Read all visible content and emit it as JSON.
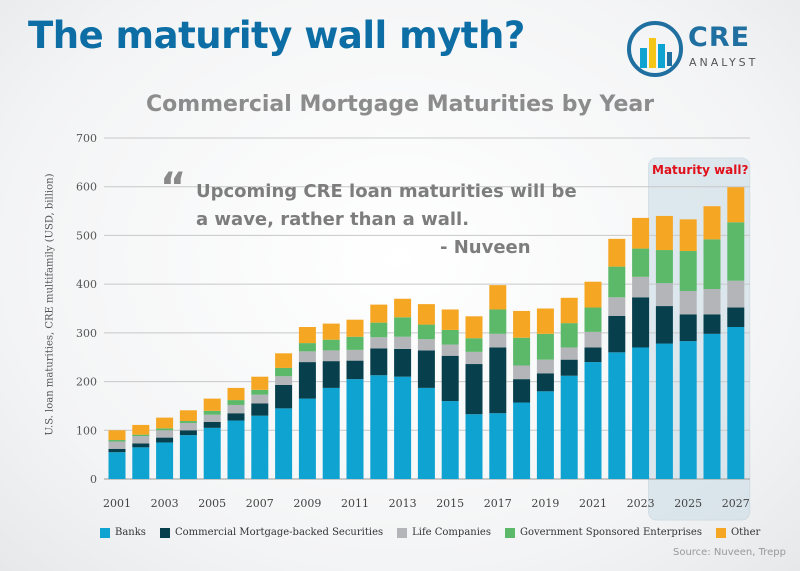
{
  "headline": "The maturity wall myth?",
  "logo": {
    "name": "CRE",
    "sub": "ANALYST"
  },
  "source": "Source: Nuveen, Trepp",
  "quote": {
    "mark": "“",
    "line1": "Upcoming CRE loan maturities will be",
    "line2": "a wave, rather than a wall.",
    "attribution": "- Nuveen"
  },
  "chart_data": {
    "type": "bar",
    "stacked": true,
    "title": "Commercial Mortgage Maturities by Year",
    "ylabel": "U.S. loan maturities, CRE multifamily (USD, billion)",
    "xlabel": "",
    "ylim": [
      0,
      700
    ],
    "yticks": [
      0,
      100,
      200,
      300,
      400,
      500,
      600,
      700
    ],
    "categories": [
      2001,
      2002,
      2003,
      2004,
      2005,
      2006,
      2007,
      2008,
      2009,
      2010,
      2011,
      2012,
      2013,
      2014,
      2015,
      2016,
      2017,
      2018,
      2019,
      2020,
      2021,
      2022,
      2023,
      2024,
      2025,
      2026,
      2027
    ],
    "xtick_labels": [
      "2001",
      "2003",
      "2005",
      "2007",
      "2009",
      "2011",
      "2013",
      "2015",
      "2017",
      "2019",
      "2021",
      "2023",
      "2025",
      "2027"
    ],
    "series": [
      {
        "name": "Banks",
        "color": "#0fa3d2",
        "values": [
          55,
          65,
          75,
          90,
          105,
          120,
          130,
          145,
          165,
          187,
          205,
          213,
          210,
          187,
          160,
          133,
          135,
          157,
          180,
          212,
          240,
          260,
          270,
          278,
          283,
          298,
          312
        ]
      },
      {
        "name": "Commercial Mortgage-backed Securities",
        "color": "#073f4c",
        "values": [
          7,
          8,
          10,
          10,
          12,
          15,
          25,
          48,
          75,
          55,
          38,
          55,
          57,
          77,
          93,
          103,
          135,
          48,
          37,
          33,
          30,
          75,
          103,
          77,
          55,
          40,
          40
        ]
      },
      {
        "name": "Life Companies",
        "color": "#b3b5b8",
        "values": [
          15,
          15,
          15,
          15,
          15,
          17,
          18,
          18,
          22,
          22,
          22,
          23,
          25,
          23,
          23,
          25,
          28,
          28,
          28,
          25,
          32,
          38,
          42,
          47,
          48,
          52,
          55
        ]
      },
      {
        "name": "Government Sponsored Enterprises",
        "color": "#5cb96a",
        "values": [
          3,
          3,
          4,
          4,
          8,
          10,
          10,
          17,
          17,
          22,
          27,
          30,
          40,
          30,
          30,
          28,
          50,
          57,
          53,
          50,
          50,
          63,
          58,
          68,
          82,
          102,
          120
        ]
      },
      {
        "name": "Other",
        "color": "#f5a623",
        "values": [
          20,
          20,
          22,
          22,
          25,
          25,
          27,
          30,
          33,
          33,
          35,
          37,
          38,
          42,
          42,
          45,
          50,
          55,
          52,
          52,
          53,
          57,
          63,
          70,
          65,
          68,
          72
        ]
      }
    ],
    "annotation": {
      "label": "Maturity wall?",
      "range": [
        2024,
        2027
      ]
    },
    "legend": "bottom",
    "grid": true
  }
}
